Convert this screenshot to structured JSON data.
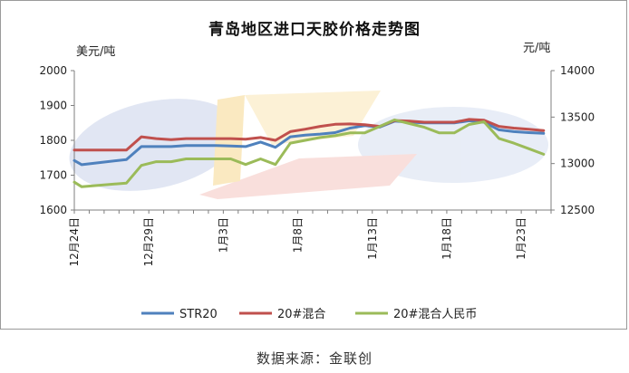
{
  "chart_data": {
    "type": "line",
    "title": "青岛地区进口天胶价格走势图",
    "left_unit": "美元/吨",
    "right_unit": "元/吨",
    "left_axis": {
      "min": 1600,
      "max": 2000,
      "ticks": [
        1600,
        1700,
        1800,
        1900,
        2000
      ]
    },
    "right_axis": {
      "min": 12500,
      "max": 14000,
      "ticks": [
        12500,
        13000,
        13500,
        14000
      ]
    },
    "x_labels": [
      "12月24日",
      "12月29日",
      "1月3日",
      "1月8日",
      "1月13日",
      "1月18日",
      "1月23日"
    ],
    "x_label_positions": [
      0,
      5,
      10,
      15,
      20,
      25,
      30
    ],
    "x_count": 32,
    "series": [
      {
        "name": "STR20",
        "axis": "left",
        "color": "#4f81bd",
        "x": [
          0,
          0.5,
          3.5,
          4.5,
          5.5,
          6.5,
          7.5,
          8.5,
          9.5,
          10.5,
          11.5,
          12.5,
          13.5,
          14.5,
          15.5,
          16.5,
          17.5,
          18.5,
          19.5,
          20.5,
          21.5,
          22.5,
          23.5,
          24.5,
          25.5,
          26.5,
          27.5,
          28.5,
          29.5,
          30.5,
          31.5
        ],
        "values": [
          1742,
          1730,
          1745,
          1782,
          1782,
          1782,
          1785,
          1785,
          1785,
          1784,
          1782,
          1795,
          1780,
          1810,
          1815,
          1818,
          1822,
          1835,
          1842,
          1838,
          1855,
          1852,
          1850,
          1850,
          1850,
          1856,
          1852,
          1830,
          1825,
          1822,
          1820
        ]
      },
      {
        "name": "20#混合",
        "axis": "left",
        "color": "#c0504d",
        "x": [
          0,
          0.5,
          3.5,
          4.5,
          5.5,
          6.5,
          7.5,
          8.5,
          9.5,
          10.5,
          11.5,
          12.5,
          13.5,
          14.5,
          15.5,
          16.5,
          17.5,
          18.5,
          19.5,
          20.5,
          21.5,
          22.5,
          23.5,
          24.5,
          25.5,
          26.5,
          27.5,
          28.5,
          29.5,
          30.5,
          31.5
        ],
        "values": [
          1772,
          1772,
          1772,
          1810,
          1805,
          1802,
          1805,
          1805,
          1805,
          1805,
          1803,
          1808,
          1800,
          1825,
          1832,
          1840,
          1846,
          1847,
          1845,
          1840,
          1857,
          1855,
          1852,
          1852,
          1852,
          1860,
          1858,
          1840,
          1835,
          1832,
          1828
        ]
      },
      {
        "name": "20#混合人民币",
        "axis": "right",
        "color": "#9bbb59",
        "x": [
          0,
          0.5,
          3.5,
          4.5,
          5.5,
          6.5,
          7.5,
          8.5,
          9.5,
          10.5,
          11.5,
          12.5,
          13.5,
          14.5,
          15.5,
          16.5,
          17.5,
          18.5,
          19.5,
          20.5,
          21.5,
          22.5,
          23.5,
          24.5,
          25.5,
          26.5,
          27.5,
          28.5,
          29.5,
          30.5,
          31.5
        ],
        "values": [
          12800,
          12750,
          12790,
          12980,
          13020,
          13020,
          13050,
          13050,
          13050,
          13050,
          12990,
          13050,
          12990,
          13220,
          13250,
          13280,
          13300,
          13330,
          13330,
          13400,
          13470,
          13430,
          13390,
          13330,
          13330,
          13420,
          13450,
          13270,
          13220,
          13160,
          13100
        ]
      }
    ]
  },
  "source": "数据来源：金联创"
}
